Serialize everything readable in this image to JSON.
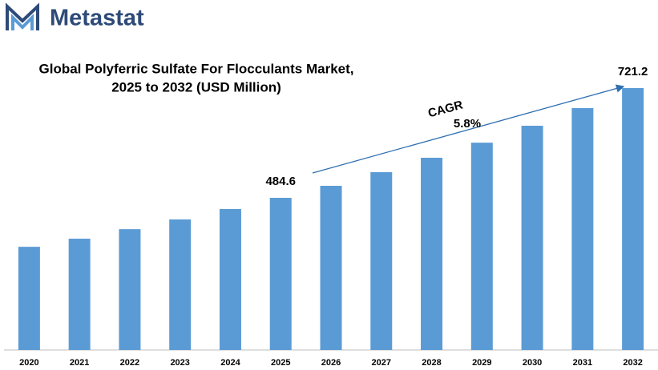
{
  "brand": "Metastat",
  "chart_data": {
    "type": "bar",
    "title": "Global Polyferric Sulfate For Flocculants Market,",
    "subtitle": "2025 to 2032 (USD Million)",
    "categories": [
      "2020",
      "2021",
      "2022",
      "2023",
      "2024",
      "2025",
      "2026",
      "2027",
      "2028",
      "2029",
      "2030",
      "2031",
      "2032"
    ],
    "values": [
      379,
      396.5,
      417,
      438,
      460.5,
      484.6,
      510.5,
      540,
      571,
      603.5,
      640,
      678,
      721.2
    ],
    "value_labels": [
      null,
      null,
      null,
      null,
      null,
      "484.6",
      null,
      null,
      null,
      null,
      null,
      null,
      "721.2"
    ],
    "color": "#5b9bd5",
    "ylim": [
      156.5,
      721.2
    ],
    "annotations": [
      "CAGR",
      "5.8%"
    ]
  }
}
